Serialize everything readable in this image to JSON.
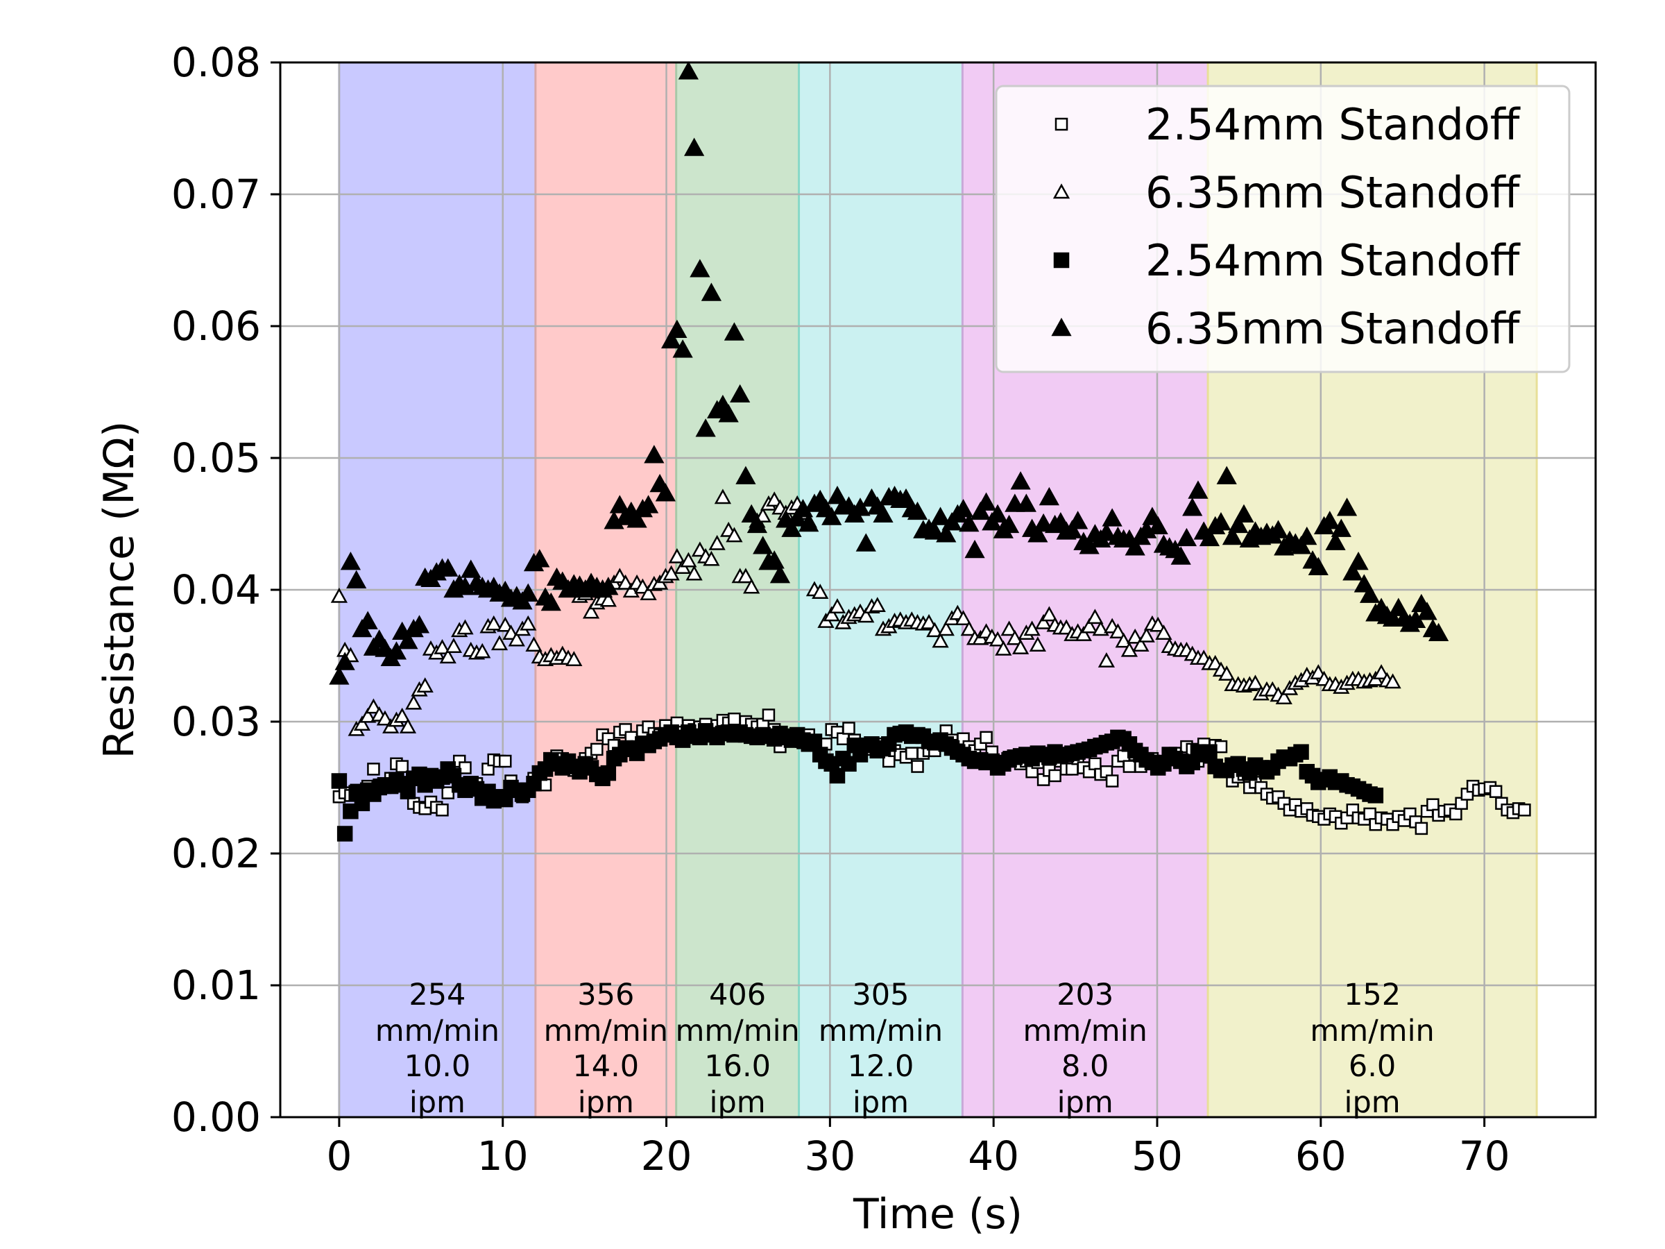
{
  "chart_data": {
    "type": "scatter",
    "xlabel": "Time (s)",
    "ylabel": "Resistance (MΩ)",
    "xlim": [
      -3.6,
      76.8
    ],
    "ylim": [
      0,
      0.08
    ],
    "xticks": [
      0,
      10,
      20,
      30,
      40,
      50,
      60,
      70
    ],
    "yticks": [
      0.0,
      0.01,
      0.02,
      0.03,
      0.04,
      0.05,
      0.06,
      0.07,
      0.08
    ],
    "grid": true,
    "legend_position": "top-right",
    "bands": [
      {
        "start": 0,
        "end": 12,
        "color": "#c9c9ff",
        "edge": "#a8a8d8",
        "label": [
          "254",
          "mm/min",
          "10.0",
          "ipm"
        ]
      },
      {
        "start": 12,
        "end": 20.6,
        "color": "#ffcaca",
        "edge": "#d8a8a8",
        "label": [
          "356",
          "mm/min",
          "14.0",
          "ipm"
        ]
      },
      {
        "start": 20.6,
        "end": 28.1,
        "color": "#cce5cc",
        "edge": "#a8c8a8",
        "label": [
          "406",
          "mm/min",
          "16.0",
          "ipm"
        ]
      },
      {
        "start": 28.1,
        "end": 38.1,
        "color": "#cbf1f1",
        "edge": "#88d8c8",
        "label": [
          "305",
          "mm/min",
          "12.0",
          "ipm"
        ]
      },
      {
        "start": 38.1,
        "end": 53.1,
        "color": "#f1cbf4",
        "edge": "#c8a8d8",
        "label": [
          "203",
          "mm/min",
          "8.0",
          "ipm"
        ]
      },
      {
        "start": 53.1,
        "end": 73.2,
        "color": "#f1f1cb",
        "edge": "#e8e098",
        "label": [
          "152",
          "mm/min",
          "6.0",
          "ipm"
        ]
      }
    ],
    "series": [
      {
        "name": "2.54mm Standoff",
        "marker": "square",
        "filled": false,
        "dt": 0.35,
        "start": 0,
        "values": [
          0.0243,
          0.0246,
          0.0244,
          0.0248,
          0.0247,
          0.0251,
          0.0264,
          0.0252,
          0.025,
          0.0257,
          0.0268,
          0.0266,
          0.0254,
          0.0238,
          0.0235,
          0.0234,
          0.0239,
          0.0235,
          0.0233,
          0.0246,
          0.0259,
          0.027,
          0.0265,
          0.025,
          0.0253,
          0.0246,
          0.0264,
          0.0271,
          0.027,
          0.027,
          0.0255,
          0.0247,
          0.0243,
          0.0249,
          0.0257,
          0.026,
          0.0252,
          0.0271,
          0.0274,
          0.0272,
          0.0269,
          0.0263,
          0.0264,
          0.0272,
          0.0276,
          0.0279,
          0.029,
          0.0287,
          0.0282,
          0.0292,
          0.0294,
          0.0288,
          0.0281,
          0.0293,
          0.0296,
          0.0291,
          0.029,
          0.0297,
          0.0293,
          0.0299,
          0.0292,
          0.0297,
          0.0294,
          0.0296,
          0.0298,
          0.0291,
          0.0297,
          0.0301,
          0.0299,
          0.0302,
          0.0291,
          0.03,
          0.0298,
          0.0296,
          0.0298,
          0.0305,
          0.0294,
          0.0281,
          0.029,
          0.0288,
          0.0287,
          0.0284,
          0.029,
          0.0282,
          0.0279,
          0.0283,
          0.0294,
          0.0292,
          0.0287,
          0.0295,
          0.0286,
          0.0277,
          0.0279,
          0.0282,
          0.028,
          0.0283,
          0.027,
          0.0278,
          0.0275,
          0.0273,
          0.0276,
          0.0266,
          0.0276,
          0.0278,
          0.0278,
          0.0286,
          0.0293,
          0.0286,
          0.0282,
          0.0287,
          0.0281,
          0.0278,
          0.0283,
          0.0288,
          0.0277,
          0.027,
          0.0268,
          0.0273,
          0.0271,
          0.0268,
          0.027,
          0.0262,
          0.0269,
          0.0256,
          0.0263,
          0.0259,
          0.027,
          0.0264,
          0.0264,
          0.0272,
          0.0265,
          0.0262,
          0.0268,
          0.026,
          0.0262,
          0.0255,
          0.027,
          0.0274,
          0.0266,
          0.0275,
          0.0266,
          0.0271,
          0.0272,
          0.027,
          0.0268,
          0.0272,
          0.0276,
          0.027,
          0.0281,
          0.0279,
          0.027,
          0.0283,
          0.0273,
          0.0282,
          0.0281,
          0.0262,
          0.0255,
          0.0258,
          0.026,
          0.025,
          0.0254,
          0.025,
          0.0245,
          0.0242,
          0.0243,
          0.0238,
          0.0233,
          0.0237,
          0.0232,
          0.0234,
          0.0229,
          0.0228,
          0.0226,
          0.023,
          0.0228,
          0.0223,
          0.0227,
          0.0233,
          0.0227,
          0.0226,
          0.023,
          0.0222,
          0.0227,
          0.0226,
          0.0222,
          0.0228,
          0.0225,
          0.023,
          0.0224,
          0.0219,
          0.0232,
          0.0237,
          0.0229,
          0.0232,
          0.0233,
          0.023,
          0.0238,
          0.0245,
          0.0251,
          0.0248,
          0.0249,
          0.025,
          0.0247,
          0.0238,
          0.0233,
          0.0231,
          0.0234,
          0.0233
        ]
      },
      {
        "name": "6.35mm Standoff",
        "marker": "triangle",
        "filled": false,
        "dt": 0.35,
        "start": 0,
        "values": [
          0.0395,
          0.0354,
          0.035,
          0.0294,
          0.0298,
          0.0304,
          0.0311,
          0.0305,
          0.0302,
          0.0296,
          0.0301,
          0.0304,
          0.0296,
          0.0314,
          0.0324,
          0.0327,
          0.0355,
          0.0352,
          0.0356,
          0.0349,
          0.0357,
          0.0369,
          0.0371,
          0.0354,
          0.0352,
          0.0353,
          0.0372,
          0.0374,
          0.0359,
          0.0373,
          0.0367,
          0.0362,
          0.037,
          0.0374,
          0.0358,
          0.0349,
          0.0347,
          0.035,
          0.0348,
          0.0351,
          0.0348,
          0.0347,
          0.0395,
          0.0397,
          0.0383,
          0.039,
          0.0393,
          0.0392,
          0.0405,
          0.041,
          0.0405,
          0.0399,
          0.0405,
          0.0402,
          0.0397,
          0.0404,
          0.0405,
          0.041,
          0.0412,
          0.0425,
          0.0417,
          0.0422,
          0.0412,
          0.043,
          0.0425,
          0.0423,
          0.0435,
          0.047,
          0.0445,
          0.0441,
          0.041,
          0.041,
          0.0402,
          0.0452,
          0.0456,
          0.0465,
          0.0468,
          0.0462,
          0.0458,
          0.0462,
          0.0465,
          0.0458,
          0.0452,
          0.04,
          0.0398,
          0.0376,
          0.0381,
          0.0387,
          0.0375,
          0.0379,
          0.0381,
          0.0383,
          0.038,
          0.0387,
          0.0388,
          0.037,
          0.0372,
          0.0376,
          0.0377,
          0.0375,
          0.0377,
          0.0375,
          0.0374,
          0.0375,
          0.0369,
          0.0361,
          0.037,
          0.0378,
          0.0382,
          0.0378,
          0.037,
          0.0363,
          0.0363,
          0.0368,
          0.0364,
          0.0362,
          0.0355,
          0.037,
          0.0363,
          0.0356,
          0.0367,
          0.037,
          0.0358,
          0.0375,
          0.0381,
          0.0373,
          0.0371,
          0.0371,
          0.0366,
          0.0368,
          0.0366,
          0.0372,
          0.0379,
          0.037,
          0.0346,
          0.0372,
          0.0368,
          0.0361,
          0.0354,
          0.0364,
          0.0358,
          0.0365,
          0.0374,
          0.0373,
          0.0367,
          0.0357,
          0.0355,
          0.0354,
          0.0354,
          0.0351,
          0.0348,
          0.0348,
          0.0344,
          0.0344,
          0.0339,
          0.0336,
          0.0328,
          0.0328,
          0.0327,
          0.0328,
          0.0329,
          0.0321,
          0.0324,
          0.0324,
          0.032,
          0.0318,
          0.0325,
          0.0329,
          0.0331,
          0.0335,
          0.0333,
          0.0337,
          0.0332,
          0.0328,
          0.0328,
          0.0326,
          0.0329,
          0.0332,
          0.0332,
          0.033,
          0.0331,
          0.0332,
          0.0337,
          0.0331,
          0.033
        ]
      },
      {
        "name": "2.54mm Standoff",
        "marker": "square",
        "filled": true,
        "dt": 0.35,
        "start": 0,
        "values": [
          0.0255,
          0.0215,
          0.0232,
          0.0246,
          0.0238,
          0.0248,
          0.0245,
          0.025,
          0.0252,
          0.0251,
          0.0256,
          0.0252,
          0.0247,
          0.0257,
          0.026,
          0.0252,
          0.0259,
          0.0255,
          0.0258,
          0.0264,
          0.0259,
          0.0252,
          0.0248,
          0.0253,
          0.0249,
          0.0242,
          0.0247,
          0.024,
          0.0243,
          0.0241,
          0.025,
          0.0248,
          0.0245,
          0.0248,
          0.0253,
          0.0261,
          0.0264,
          0.0271,
          0.0268,
          0.0265,
          0.027,
          0.0266,
          0.0262,
          0.0268,
          0.0265,
          0.026,
          0.0257,
          0.0261,
          0.0272,
          0.0275,
          0.028,
          0.0279,
          0.0276,
          0.0283,
          0.0282,
          0.0285,
          0.0287,
          0.029,
          0.0292,
          0.0288,
          0.0286,
          0.0292,
          0.0289,
          0.0288,
          0.0293,
          0.029,
          0.0288,
          0.0291,
          0.0292,
          0.029,
          0.0292,
          0.029,
          0.0289,
          0.0288,
          0.029,
          0.0289,
          0.0287,
          0.0291,
          0.0288,
          0.0286,
          0.029,
          0.0286,
          0.0283,
          0.0285,
          0.0275,
          0.027,
          0.0268,
          0.0259,
          0.0272,
          0.0268,
          0.0282,
          0.0275,
          0.0282,
          0.0283,
          0.0278,
          0.028,
          0.0283,
          0.029,
          0.0291,
          0.0292,
          0.0289,
          0.029,
          0.0289,
          0.0285,
          0.0284,
          0.0286,
          0.0283,
          0.028,
          0.0277,
          0.0275,
          0.0272,
          0.027,
          0.0271,
          0.0269,
          0.027,
          0.0265,
          0.0268,
          0.0271,
          0.0273,
          0.0274,
          0.0275,
          0.0272,
          0.0276,
          0.0275,
          0.0273,
          0.0277,
          0.0274,
          0.0275,
          0.0276,
          0.0277,
          0.0278,
          0.0279,
          0.0281,
          0.0282,
          0.0284,
          0.0285,
          0.0288,
          0.0287,
          0.0283,
          0.0278,
          0.0275,
          0.0271,
          0.0269,
          0.0265,
          0.0268,
          0.0275,
          0.0272,
          0.027,
          0.0266,
          0.0269,
          0.0277,
          0.0275,
          0.0277,
          0.0266,
          0.0263,
          0.0263,
          0.0267,
          0.0268,
          0.0264,
          0.0261,
          0.0267,
          0.0265,
          0.0262,
          0.0265,
          0.027,
          0.0273,
          0.0272,
          0.0275,
          0.0277,
          0.0262,
          0.0259,
          0.0254,
          0.0256,
          0.0258,
          0.0254,
          0.0255,
          0.0252,
          0.0251,
          0.0249,
          0.0247,
          0.0245,
          0.0244
        ]
      },
      {
        "name": "6.35mm Standoff",
        "marker": "triangle",
        "filled": true,
        "dt": 0.35,
        "start": 0,
        "values": [
          0.0334,
          0.0345,
          0.0421,
          0.0407,
          0.037,
          0.0376,
          0.0356,
          0.0362,
          0.0355,
          0.0348,
          0.0353,
          0.0368,
          0.0361,
          0.037,
          0.0373,
          0.0409,
          0.0408,
          0.0413,
          0.0416,
          0.0416,
          0.04,
          0.0404,
          0.0402,
          0.0415,
          0.0405,
          0.0402,
          0.04,
          0.0402,
          0.0397,
          0.0399,
          0.0393,
          0.0395,
          0.0391,
          0.0397,
          0.042,
          0.0423,
          0.0394,
          0.039,
          0.0409,
          0.0406,
          0.04,
          0.0404,
          0.0403,
          0.04,
          0.0405,
          0.0402,
          0.04,
          0.0402,
          0.0452,
          0.0464,
          0.0455,
          0.0459,
          0.0453,
          0.0461,
          0.0464,
          0.0502,
          0.048,
          0.0473,
          0.0589,
          0.0597,
          0.0582,
          0.0793,
          0.0735,
          0.0643,
          0.0522,
          0.0625,
          0.0536,
          0.054,
          0.0533,
          0.0595,
          0.0548,
          0.0486,
          0.0457,
          0.0449,
          0.0433,
          0.0421,
          0.0422,
          0.0411,
          0.0453,
          0.0446,
          0.0454,
          0.0461,
          0.045,
          0.0465,
          0.0468,
          0.0461,
          0.0455,
          0.0471,
          0.0463,
          0.0463,
          0.0457,
          0.0462,
          0.0435,
          0.0469,
          0.0463,
          0.0457,
          0.047,
          0.0471,
          0.0468,
          0.0469,
          0.0461,
          0.0459,
          0.0445,
          0.0446,
          0.0444,
          0.0455,
          0.0442,
          0.0451,
          0.0457,
          0.0461,
          0.045,
          0.043,
          0.0459,
          0.0466,
          0.0451,
          0.0457,
          0.0445,
          0.0449,
          0.0465,
          0.0482,
          0.0465,
          0.0446,
          0.0442,
          0.045,
          0.047,
          0.0449,
          0.0451,
          0.0444,
          0.0445,
          0.0452,
          0.0436,
          0.0433,
          0.0442,
          0.0438,
          0.0443,
          0.0454,
          0.044,
          0.0438,
          0.0438,
          0.0432,
          0.044,
          0.0445,
          0.0455,
          0.0448,
          0.0434,
          0.0432,
          0.043,
          0.0425,
          0.0439,
          0.0462,
          0.0475,
          0.0444,
          0.0439,
          0.0448,
          0.0451,
          0.0486,
          0.044,
          0.0449,
          0.0457,
          0.0438,
          0.0444,
          0.044,
          0.0443,
          0.0441,
          0.0445,
          0.0432,
          0.0437,
          0.0435,
          0.0433,
          0.044,
          0.0422,
          0.0417,
          0.0448,
          0.0452,
          0.0436,
          0.0446,
          0.0462,
          0.0413,
          0.0421,
          0.0404,
          0.0396,
          0.0382,
          0.0386,
          0.038,
          0.0378,
          0.0386,
          0.0378,
          0.0374,
          0.0377,
          0.0389,
          0.0383,
          0.037,
          0.0367
        ]
      }
    ]
  }
}
